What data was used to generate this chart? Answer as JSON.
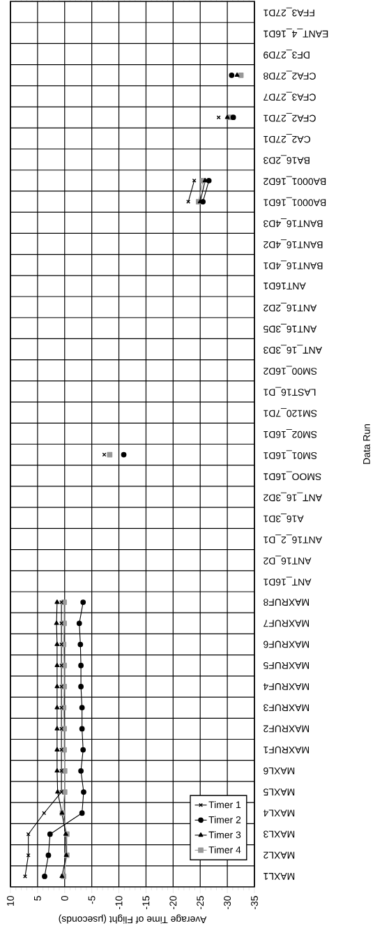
{
  "chart_data": {
    "type": "line",
    "orientation": "horizontal",
    "xlabel": "Average Time of Flight (μseconds)",
    "ylabel": "Data Run",
    "categories": [
      "FFA3_27D1",
      "EANT_4_16D1",
      "DF3_27D9",
      "CFA2_27D8",
      "CFA3_27D7",
      "CFA2_27D1",
      "CA2_27D1",
      "BA16_2D3",
      "BA0001_16D2",
      "BA0001_16D1",
      "BANT16_4D3",
      "BANT16_4D2",
      "BANT16_4D1",
      "ANT16D1",
      "ANT16_2D2",
      "ANT16_3D5",
      "ANT_16_3D3",
      "SM00_16D2",
      "LAST16_D1",
      "SM120_7D1",
      "SM02_16D1",
      "SM01_16D1",
      "SMOO_16D1",
      "ANT_16_3D2",
      "A16_3D1",
      "ANT16_2_D1",
      "ANT16_D2",
      "ANT_16D1",
      "MAXRUF8",
      "MAXRUF7",
      "MAXRUF6",
      "MAXRUF5",
      "MAXRUF4",
      "MAXRUF3",
      "MAXRUF2",
      "MAXRUF1",
      "MAXL6",
      "MAXL5",
      "MAXL4",
      "MAXL3",
      "MAXL2",
      "MAXL1"
    ],
    "series": [
      {
        "name": "Timer 1",
        "color": "#000000",
        "marker": "cross",
        "values": [
          null,
          null,
          null,
          null,
          null,
          -28.4,
          null,
          null,
          -23.9,
          -22.8,
          null,
          null,
          null,
          null,
          null,
          null,
          null,
          null,
          null,
          null,
          null,
          -7.3,
          null,
          null,
          null,
          null,
          null,
          null,
          0.6,
          0.6,
          0.6,
          0.6,
          0.6,
          0.6,
          0.6,
          0.6,
          0.6,
          0.6,
          3.8,
          6.7,
          6.7,
          7.3
        ]
      },
      {
        "name": "Timer 2",
        "color": "#000000",
        "marker": "circle",
        "values": [
          null,
          null,
          null,
          -30.8,
          null,
          -31.1,
          null,
          null,
          -26.6,
          -25.5,
          null,
          null,
          null,
          null,
          null,
          null,
          null,
          null,
          null,
          null,
          null,
          -10.9,
          null,
          null,
          null,
          null,
          null,
          null,
          -3.4,
          -2.7,
          -2.9,
          -3.0,
          -3.0,
          -3.2,
          -3.2,
          -3.4,
          -3.0,
          -3.5,
          -3.2,
          2.7,
          3.0,
          3.7
        ]
      },
      {
        "name": "Timer 3",
        "color": "#000000",
        "marker": "triangle",
        "values": [
          null,
          null,
          null,
          -31.8,
          null,
          -30.0,
          null,
          null,
          -25.9,
          -25.0,
          null,
          null,
          null,
          null,
          null,
          null,
          null,
          null,
          null,
          null,
          null,
          null,
          null,
          null,
          null,
          null,
          null,
          null,
          1.4,
          1.5,
          1.4,
          1.4,
          1.4,
          1.4,
          1.4,
          1.4,
          1.4,
          1.3,
          0.5,
          -0.2,
          -0.3,
          0.5
        ]
      },
      {
        "name": "Timer 4",
        "color": "#999999",
        "marker": "square",
        "values": [
          null,
          null,
          null,
          -32.5,
          null,
          -30.5,
          null,
          null,
          -25.5,
          -24.7,
          null,
          null,
          null,
          null,
          null,
          null,
          null,
          null,
          null,
          null,
          null,
          -8.3,
          null,
          null,
          null,
          null,
          null,
          null,
          0.1,
          0.1,
          0.2,
          0.1,
          0.1,
          0.2,
          0.1,
          0.1,
          0.0,
          0.0,
          0.4,
          -0.4,
          -0.4,
          0.2
        ]
      }
    ],
    "xlim": [
      10,
      -35
    ],
    "xticks": [
      10,
      5,
      0,
      -5,
      -10,
      -15,
      -20,
      -25,
      -30,
      -35
    ],
    "grid": true,
    "legend": "bottom right",
    "line_style": "solid"
  }
}
